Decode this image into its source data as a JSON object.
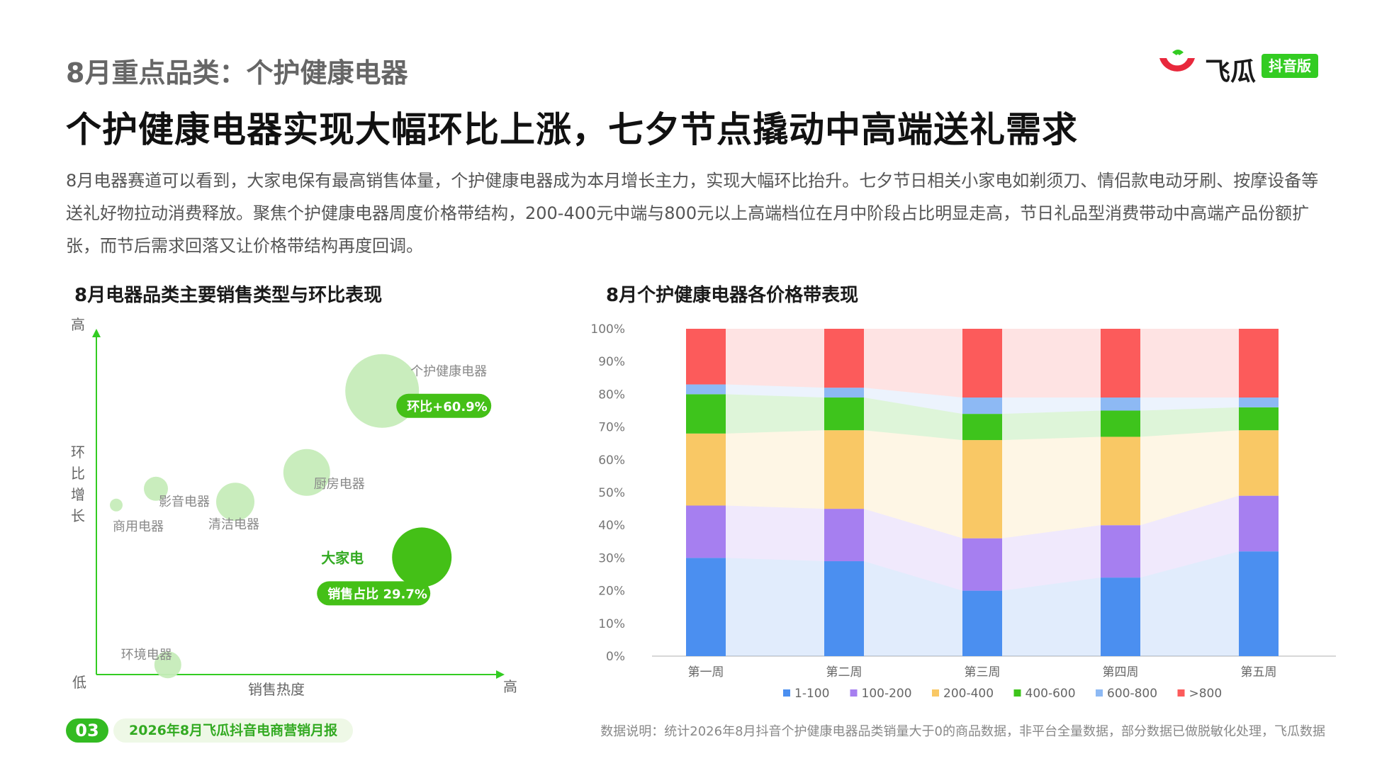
{
  "header": {
    "kicker": "8月重点品类：个护健康电器",
    "headline": "个护健康电器实现大幅环比上涨，七夕节点撬动中高端送礼需求",
    "lead": "8月电器赛道可以看到，大家电保有最高销售体量，个护健康电器成为本月增长主力，实现大幅环比抬升。七夕节日相关小家电如剃须刀、情侣款电动牙刷、按摩设备等送礼好物拉动消费释放。聚焦个护健康电器周度价格带结构，200-400元中端与800元以上高端档位在月中阶段占比明显走高，节日礼品型消费带动中高端产品份额扩张，而节后需求回落又让价格带结构再度回调。"
  },
  "logo": {
    "name": "飞瓜",
    "badge": "抖音版",
    "colors": {
      "red": "#e8283c",
      "green": "#33cc22"
    }
  },
  "footer": {
    "page_number": "03",
    "report_name": "2026年8月飞瓜抖音电商营销月报",
    "note": "数据说明：统计2026年8月抖音个护健康电器品类销量大于0的商品数据，非平台全量数据，部分数据已做脱敏化处理，飞瓜数据"
  },
  "chart_data": [
    {
      "type": "scatter",
      "title": "8月电器品类主要销售类型与环比表现",
      "xlabel": "销售热度",
      "ylabel": "环比增长",
      "x_low_label": "低",
      "x_high_label": "高",
      "y_high_label": "高",
      "xlim": [
        0,
        100
      ],
      "ylim": [
        0,
        100
      ],
      "points": [
        {
          "name": "个护健康电器",
          "x": 72,
          "y": 87,
          "size": 52,
          "color": "#c6ecb9",
          "tag": "环比+60.9%",
          "highlight": true
        },
        {
          "name": "厨房电器",
          "x": 53,
          "y": 62,
          "size": 33,
          "color": "#c6ecb9"
        },
        {
          "name": "影音电器",
          "x": 15,
          "y": 57,
          "size": 17,
          "color": "#c6ecb9"
        },
        {
          "name": "清洁电器",
          "x": 35,
          "y": 53,
          "size": 27,
          "color": "#c6ecb9"
        },
        {
          "name": "商用电器",
          "x": 5,
          "y": 52,
          "size": 9,
          "color": "#c6ecb9"
        },
        {
          "name": "大家电",
          "x": 82,
          "y": 36,
          "size": 42,
          "color": "#44c017",
          "tag": "销售占比 29.7%",
          "highlight": true
        },
        {
          "name": "环境电器",
          "x": 18,
          "y": 3,
          "size": 19,
          "color": "#c6ecb9"
        }
      ],
      "colors": {
        "axis": "#33cc22",
        "tag_bg": "#44c017",
        "highlight_label": "#33aa22"
      }
    },
    {
      "type": "bar",
      "stacked": "percent",
      "title": "8月个护健康电器各价格带表现",
      "categories": [
        "第一周",
        "第二周",
        "第三周",
        "第四周",
        "第五周"
      ],
      "ylim": [
        0,
        100
      ],
      "yticks": [
        "0%",
        "10%",
        "20%",
        "30%",
        "40%",
        "50%",
        "60%",
        "70%",
        "80%",
        "90%",
        "100%"
      ],
      "legend_position": "bottom",
      "series": [
        {
          "name": "1-100",
          "color": "#4b8ff0",
          "values": [
            30,
            29,
            20,
            24,
            32
          ]
        },
        {
          "name": "100-200",
          "color": "#a67ff0",
          "values": [
            16,
            16,
            16,
            16,
            17
          ]
        },
        {
          "name": "200-400",
          "color": "#f9c865",
          "values": [
            22,
            24,
            30,
            27,
            20
          ]
        },
        {
          "name": "400-600",
          "color": "#3ec41c",
          "values": [
            12,
            10,
            8,
            8,
            7
          ]
        },
        {
          "name": "600-800",
          "color": "#8db9f4",
          "values": [
            3,
            3,
            5,
            4,
            3
          ]
        },
        {
          "name": ">800",
          "color": "#fc5b5b",
          "values": [
            17,
            18,
            21,
            21,
            21
          ]
        }
      ]
    }
  ]
}
